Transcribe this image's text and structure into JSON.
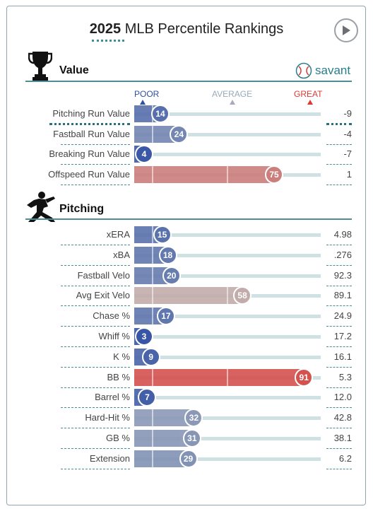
{
  "header": {
    "year": "2025",
    "title": "MLB Percentile Rankings"
  },
  "scale": {
    "poor": "POOR",
    "average": "AVERAGE",
    "great": "GREAT"
  },
  "brand": {
    "name": "savant"
  },
  "colors": {
    "accent": "#3a8f9a",
    "poor_dark": "#2f4fa3",
    "great_red": "#d93a35",
    "track": "#cfe1e3",
    "neutral_gray": "#b9bfbf"
  },
  "sections": [
    {
      "title": "Value",
      "icon": "trophy-icon",
      "rows": [
        {
          "label": "Pitching Run Value",
          "percentile": 14,
          "value": "-9"
        },
        {
          "label": "Fastball Run Value",
          "percentile": 24,
          "value": "-4"
        },
        {
          "label": "Breaking Run Value",
          "percentile": 4,
          "value": "-7"
        },
        {
          "label": "Offspeed Run Value",
          "percentile": 75,
          "value": "1"
        }
      ]
    },
    {
      "title": "Pitching",
      "icon": "pitcher-icon",
      "rows": [
        {
          "label": "xERA",
          "percentile": 15,
          "value": "4.98"
        },
        {
          "label": "xBA",
          "percentile": 18,
          "value": ".276"
        },
        {
          "label": "Fastball Velo",
          "percentile": 20,
          "value": "92.3"
        },
        {
          "label": "Avg Exit Velo",
          "percentile": 58,
          "value": "89.1"
        },
        {
          "label": "Chase %",
          "percentile": 17,
          "value": "24.9"
        },
        {
          "label": "Whiff %",
          "percentile": 3,
          "value": "17.2"
        },
        {
          "label": "K %",
          "percentile": 9,
          "value": "16.1"
        },
        {
          "label": "BB %",
          "percentile": 91,
          "value": "5.3"
        },
        {
          "label": "Barrel %",
          "percentile": 7,
          "value": "12.0"
        },
        {
          "label": "Hard-Hit %",
          "percentile": 32,
          "value": "42.8"
        },
        {
          "label": "GB %",
          "percentile": 31,
          "value": "38.1"
        },
        {
          "label": "Extension",
          "percentile": 29,
          "value": "6.2"
        }
      ]
    }
  ]
}
